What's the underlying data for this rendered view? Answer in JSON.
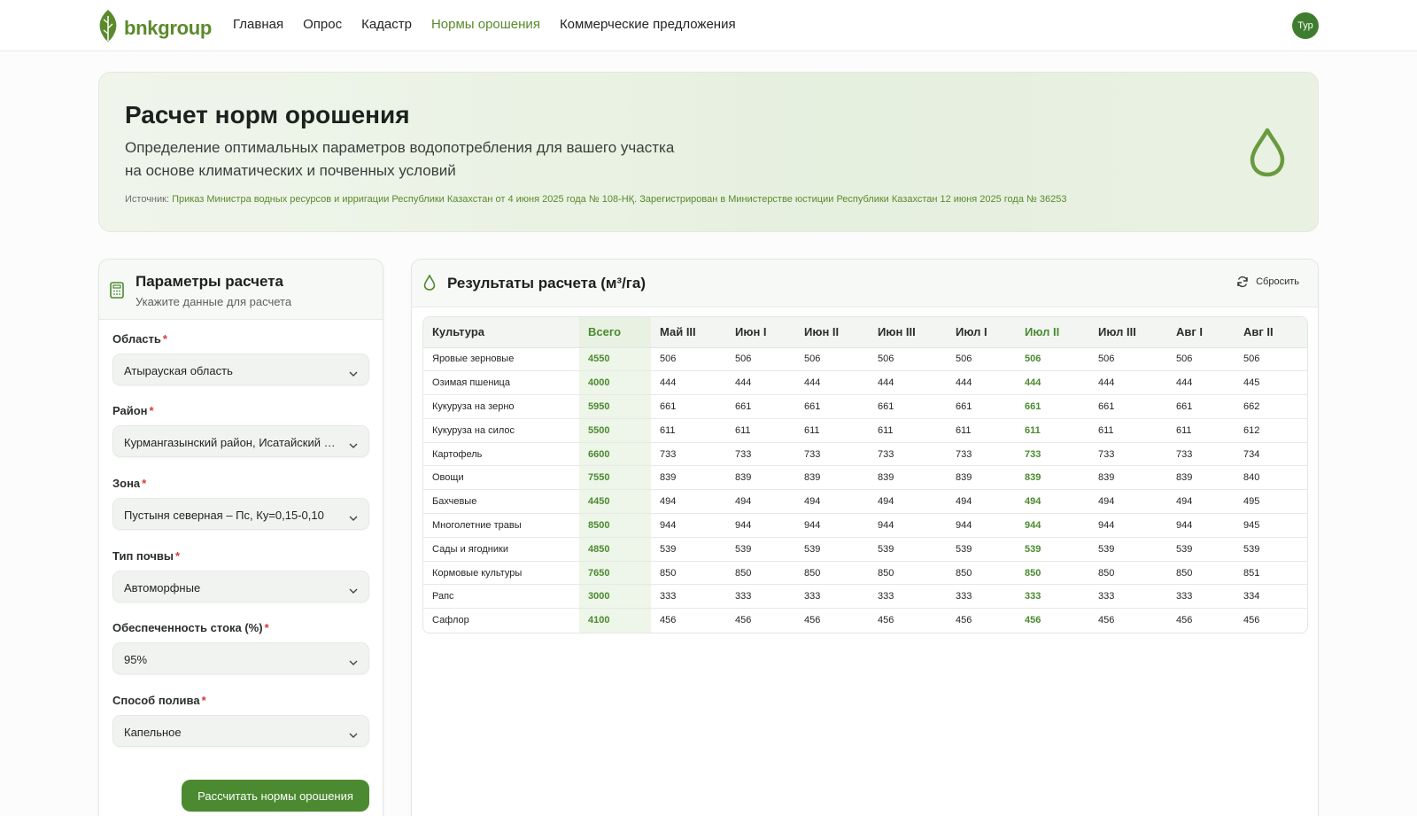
{
  "brand": {
    "name": "bnkgroup",
    "accent": "#5a8a2c"
  },
  "nav": [
    {
      "label": "Главная",
      "active": false
    },
    {
      "label": "Опрос",
      "active": false
    },
    {
      "label": "Кадастр",
      "active": false
    },
    {
      "label": "Нормы орошения",
      "active": true
    },
    {
      "label": "Коммерческие предложения",
      "active": false
    }
  ],
  "user": {
    "initials": "Тур"
  },
  "hero": {
    "title": "Расчет норм орошения",
    "subtitle_line1": "Определение оптимальных параметров водопотребления для вашего участка",
    "subtitle_line2": "на основе климатических и почвенных условий",
    "source_prefix": "Источник:",
    "source_text": "Приказ Министра водных ресурсов и ирригации Республики Казахстан от 4 июня 2025 года № 108-НҚ. Зарегистрирован в Министерстве юстиции Республики Казахстан 12 июня 2025 года № 36253",
    "icon": "water-drop-icon"
  },
  "params": {
    "title": "Параметры расчета",
    "subtitle": "Укажите данные для расчета",
    "required_mark": "*",
    "fields": [
      {
        "label": "Область",
        "value": "Атырауская область"
      },
      {
        "label": "Район",
        "value": "Курмангазынский район, Исатайский район"
      },
      {
        "label": "Зона",
        "value": "Пустыня северная – Пс, Ку=0,15-0,10"
      },
      {
        "label": "Тип почвы",
        "value": "Автоморфные"
      },
      {
        "label": "Обеспеченность стока (%)",
        "value": "95%"
      },
      {
        "label": "Способ полива",
        "value": "Капельное"
      }
    ],
    "submit_label": "Рассчитать нормы орошения"
  },
  "results": {
    "title": "Результаты расчета (м³/га)",
    "reset_label": "Сбросить",
    "columns": [
      "Культура",
      "Всего",
      "Май III",
      "Июн I",
      "Июн II",
      "Июн III",
      "Июл I",
      "Июл II",
      "Июл III",
      "Авг I",
      "Авг II"
    ],
    "rows": [
      [
        "Яровые зерновые",
        "4550",
        "506",
        "506",
        "506",
        "506",
        "506",
        "506",
        "506",
        "506",
        "506"
      ],
      [
        "Озимая пшеница",
        "4000",
        "444",
        "444",
        "444",
        "444",
        "444",
        "444",
        "444",
        "444",
        "445"
      ],
      [
        "Кукуруза на зерно",
        "5950",
        "661",
        "661",
        "661",
        "661",
        "661",
        "661",
        "661",
        "661",
        "662"
      ],
      [
        "Кукуруза на силос",
        "5500",
        "611",
        "611",
        "611",
        "611",
        "611",
        "611",
        "611",
        "611",
        "612"
      ],
      [
        "Картофель",
        "6600",
        "733",
        "733",
        "733",
        "733",
        "733",
        "733",
        "733",
        "733",
        "734"
      ],
      [
        "Овощи",
        "7550",
        "839",
        "839",
        "839",
        "839",
        "839",
        "839",
        "839",
        "839",
        "840"
      ],
      [
        "Бахчевые",
        "4450",
        "494",
        "494",
        "494",
        "494",
        "494",
        "494",
        "494",
        "494",
        "495"
      ],
      [
        "Многолетние травы",
        "8500",
        "944",
        "944",
        "944",
        "944",
        "944",
        "944",
        "944",
        "944",
        "945"
      ],
      [
        "Сады и ягодники",
        "4850",
        "539",
        "539",
        "539",
        "539",
        "539",
        "539",
        "539",
        "539",
        "539"
      ],
      [
        "Кормовые культуры",
        "7650",
        "850",
        "850",
        "850",
        "850",
        "850",
        "850",
        "850",
        "850",
        "851"
      ],
      [
        "Рапс",
        "3000",
        "333",
        "333",
        "333",
        "333",
        "333",
        "333",
        "333",
        "333",
        "334"
      ],
      [
        "Сафлор",
        "4100",
        "456",
        "456",
        "456",
        "456",
        "456",
        "456",
        "456",
        "456",
        "456"
      ]
    ]
  }
}
